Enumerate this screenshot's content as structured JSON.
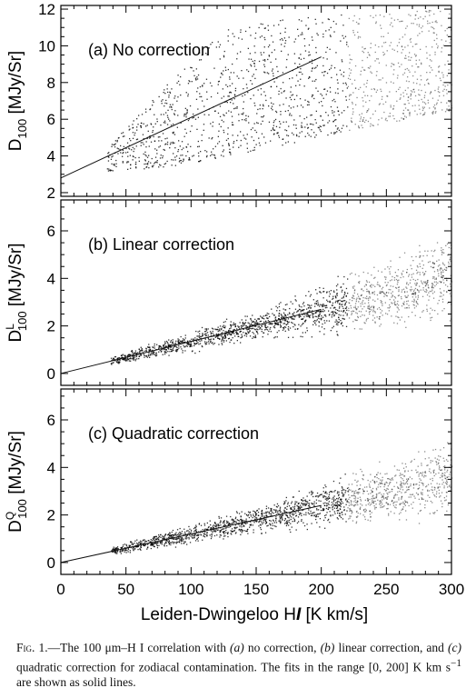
{
  "chart_data": [
    {
      "type": "scatter",
      "panel_label": "(a) No correction",
      "ylabel_main": "D",
      "ylabel_sub": "100",
      "ylabel_sup": "",
      "ylabel_unit": " [MJy/Sr]",
      "xlim": [
        0,
        300
      ],
      "ylim": [
        1.8,
        12.2
      ],
      "xticks": [
        0,
        50,
        100,
        150,
        200,
        250,
        300
      ],
      "yticks": [
        2,
        4,
        6,
        8,
        10,
        12
      ],
      "fit_line": {
        "x": [
          0,
          200
        ],
        "y": [
          2.8,
          9.4
        ]
      },
      "points_model": {
        "x_range": [
          35,
          300
        ],
        "count": 1500,
        "seed": 11,
        "lower_y": [
          [
            35,
            3.2
          ],
          [
            80,
            3.4
          ],
          [
            150,
            4.3
          ],
          [
            220,
            5.4
          ],
          [
            300,
            6.5
          ]
        ],
        "upper_y": [
          [
            35,
            4.5
          ],
          [
            80,
            7.8
          ],
          [
            120,
            10.8
          ],
          [
            180,
            11.6
          ],
          [
            300,
            12.1
          ]
        ]
      }
    },
    {
      "type": "scatter",
      "panel_label": "(b) Linear correction",
      "ylabel_main": "D",
      "ylabel_sub": "100",
      "ylabel_sup": "L",
      "ylabel_unit": " [MJy/Sr]",
      "xlim": [
        0,
        300
      ],
      "ylim": [
        -0.5,
        7.3
      ],
      "xticks": [
        0,
        50,
        100,
        150,
        200,
        250,
        300
      ],
      "yticks": [
        0,
        2,
        4,
        6
      ],
      "fit_line": {
        "x": [
          0,
          200
        ],
        "y": [
          0.0,
          2.7
        ]
      },
      "points_model": {
        "x_range": [
          38,
          300
        ],
        "count": 1800,
        "seed": 23,
        "center": [
          [
            38,
            0.55
          ],
          [
            100,
            1.35
          ],
          [
            200,
            2.7
          ],
          [
            300,
            4.05
          ]
        ],
        "spread": [
          [
            38,
            0.12
          ],
          [
            150,
            0.35
          ],
          [
            300,
            1.1
          ]
        ]
      }
    },
    {
      "type": "scatter",
      "panel_label": "(c) Quadratic correction",
      "ylabel_main": "D",
      "ylabel_sub": "100",
      "ylabel_sup": "Q",
      "ylabel_unit": " [MJy/Sr]",
      "xlim": [
        0,
        300
      ],
      "ylim": [
        -0.5,
        7.3
      ],
      "xticks": [
        0,
        50,
        100,
        150,
        200,
        250,
        300
      ],
      "yticks": [
        0,
        2,
        4,
        6
      ],
      "fit_line": {
        "x": [
          0,
          200
        ],
        "y": [
          0.0,
          2.4
        ]
      },
      "points_model": {
        "x_range": [
          38,
          300
        ],
        "count": 1800,
        "seed": 37,
        "center": [
          [
            38,
            0.5
          ],
          [
            100,
            1.2
          ],
          [
            200,
            2.4
          ],
          [
            300,
            3.6
          ]
        ],
        "spread": [
          [
            38,
            0.12
          ],
          [
            150,
            0.33
          ],
          [
            300,
            1.0
          ]
        ]
      }
    }
  ],
  "xlabel_prefix": "Leiden-Dwingeloo H",
  "xlabel_italic": "I",
  "xlabel_suffix": " [K km/s]",
  "caption": {
    "fig_label": "Fig. 1.",
    "text_1": "—The 100 μm–H ",
    "text_roman": "I",
    "text_2": " correlation with ",
    "a": "(a)",
    "text_3": " no correction, ",
    "b": "(b)",
    "text_4": " linear correction, and ",
    "c": "(c)",
    "text_5": " quadratic correction for zodiacal contamination. The fits in the range [0, 200] K km s",
    "sup": "−1",
    "text_6": " are shown as solid lines."
  }
}
